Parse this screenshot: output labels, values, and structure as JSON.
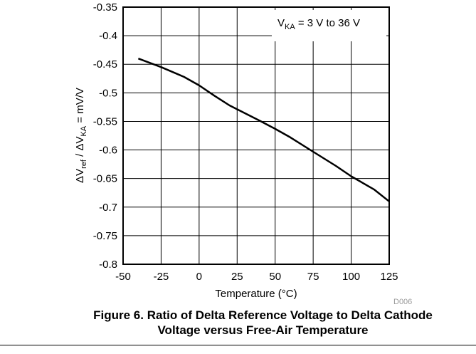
{
  "chart_data": {
    "type": "line",
    "code": "D006",
    "xlabel": "Temperature (°C)",
    "ylabel": {
      "d1": "ΔV",
      "s1": "ref",
      "m": " / ΔV",
      "s2": "KA",
      "e": " = mV/V"
    },
    "annotation": {
      "pre": "V",
      "sub": "KA",
      "post": " = 3 V to 36 V"
    },
    "xlim": [
      -50,
      125
    ],
    "ylim": [
      -0.8,
      -0.35
    ],
    "xticks": [
      "-50",
      "-25",
      "0",
      "25",
      "50",
      "75",
      "100",
      "125"
    ],
    "yticks": [
      "-0.35",
      "-0.4",
      "-0.45",
      "-0.5",
      "-0.55",
      "-0.6",
      "-0.65",
      "-0.7",
      "-0.75",
      "-0.8"
    ],
    "grid": true,
    "series": [
      {
        "x": [
          -40,
          -25,
          -10,
          0,
          10,
          20,
          40,
          50,
          60,
          75,
          90,
          100,
          115,
          125
        ],
        "y": [
          -0.44,
          -0.455,
          -0.472,
          -0.487,
          -0.505,
          -0.522,
          -0.549,
          -0.563,
          -0.578,
          -0.603,
          -0.628,
          -0.646,
          -0.669,
          -0.69
        ]
      }
    ]
  },
  "caption": {
    "line1": "Figure 6. Ratio of Delta Reference Voltage to Delta Cathode",
    "line2": "Voltage versus Free-Air Temperature"
  }
}
